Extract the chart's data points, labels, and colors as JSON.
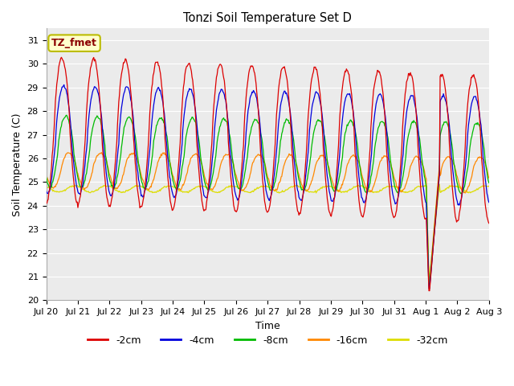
{
  "title": "Tonzi Soil Temperature Set D",
  "xlabel": "Time",
  "ylabel": "Soil Temperature (C)",
  "ylim": [
    20.0,
    31.5
  ],
  "yticks": [
    20.0,
    21.0,
    22.0,
    23.0,
    24.0,
    25.0,
    26.0,
    27.0,
    28.0,
    29.0,
    30.0,
    31.0
  ],
  "annotation": "TZ_fmet",
  "colors": {
    "-2cm": "#dd0000",
    "-4cm": "#0000dd",
    "-8cm": "#00bb00",
    "-16cm": "#ff8800",
    "-32cm": "#dddd00"
  },
  "plot_bg": "#ebebeb",
  "fig_bg": "#ffffff",
  "n_days": 14,
  "xtick_labels": [
    "Jul 20",
    "Jul 21",
    "Jul 22",
    "Jul 23",
    "Jul 24",
    "Jul 25",
    "Jul 26",
    "Jul 27",
    "Jul 28",
    "Jul 29",
    "Jul 30",
    "Jul 31",
    "Aug 1",
    "Aug 2",
    "Aug 3"
  ]
}
